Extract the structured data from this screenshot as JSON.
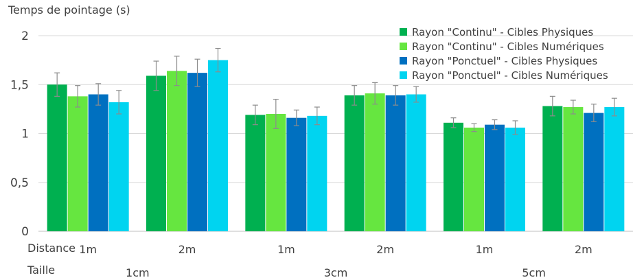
{
  "chart_data": {
    "type": "bar",
    "ylabel": "Temps de pointage (s)",
    "ylim": [
      0,
      2
    ],
    "yticks": [
      "0",
      "0,5",
      "1",
      "1,5",
      "2"
    ],
    "grid": true,
    "legend_position": "top-right",
    "row_labels": {
      "distance": "Distance",
      "taille": "Taille"
    },
    "distance_labels": [
      "1m",
      "2m",
      "1m",
      "2m",
      "1m",
      "2m"
    ],
    "taille_labels": [
      "1cm",
      "3cm",
      "5cm"
    ],
    "series": [
      {
        "name": "Rayon \"Continu\" - Cibles Physiques",
        "color": "#00b050",
        "values": [
          1.5,
          1.59,
          1.19,
          1.39,
          1.11,
          1.28
        ],
        "errors": [
          0.12,
          0.15,
          0.1,
          0.1,
          0.05,
          0.1
        ]
      },
      {
        "name": "Rayon \"Continu\" - Cibles Numériques",
        "color": "#66e640",
        "values": [
          1.38,
          1.64,
          1.2,
          1.41,
          1.06,
          1.27
        ],
        "errors": [
          0.11,
          0.15,
          0.15,
          0.11,
          0.04,
          0.07
        ]
      },
      {
        "name": "Rayon \"Ponctuel\" - Cibles Physiques",
        "color": "#0070c0",
        "values": [
          1.4,
          1.62,
          1.16,
          1.39,
          1.09,
          1.21
        ],
        "errors": [
          0.11,
          0.14,
          0.08,
          0.1,
          0.05,
          0.09
        ]
      },
      {
        "name": "Rayon \"Ponctuel\" - Cibles Numériques",
        "color": "#00d4f0",
        "values": [
          1.32,
          1.75,
          1.18,
          1.4,
          1.06,
          1.27
        ],
        "errors": [
          0.12,
          0.12,
          0.09,
          0.08,
          0.07,
          0.09
        ]
      }
    ]
  }
}
